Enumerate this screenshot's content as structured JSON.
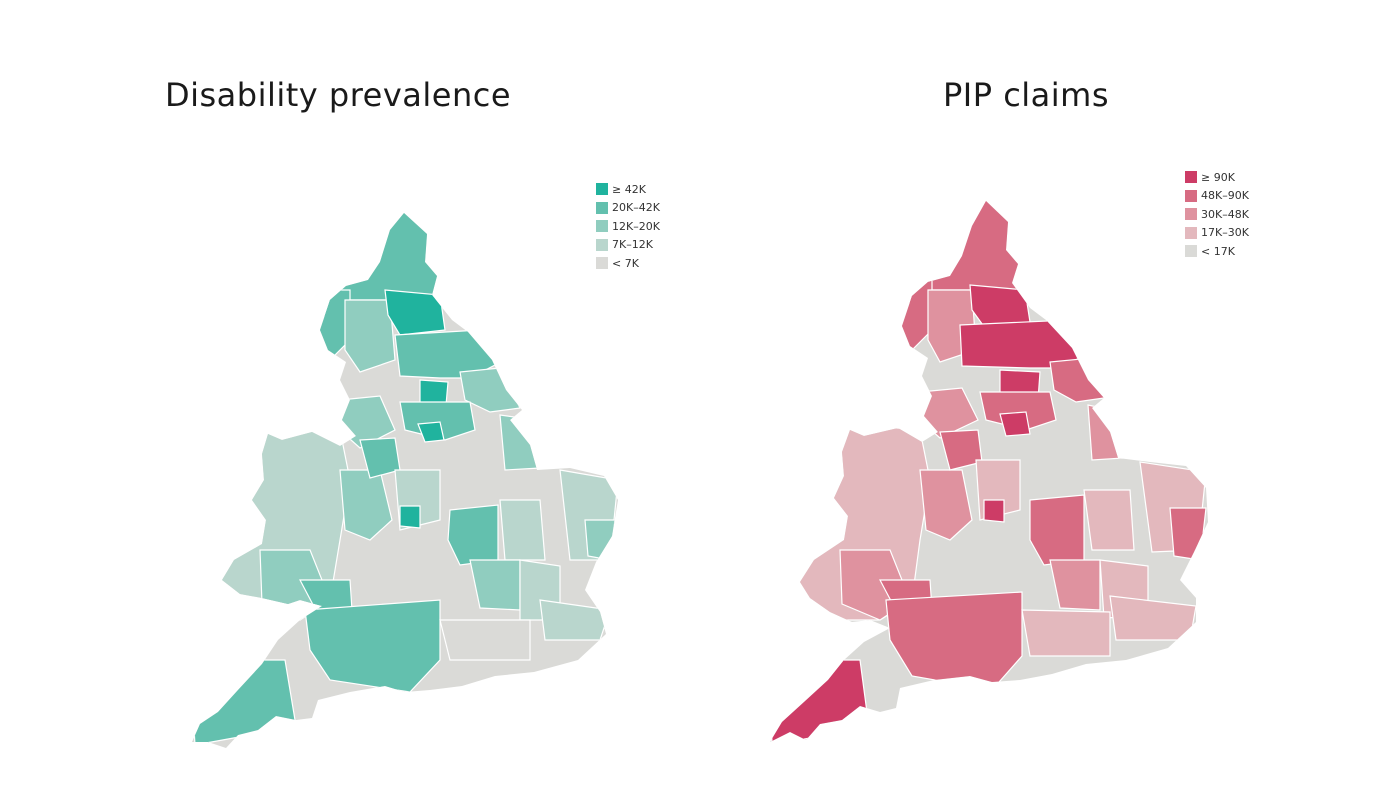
{
  "panels": [
    {
      "title": "Disability prevalence",
      "legend": [
        {
          "label": "≥ 42K",
          "color": "#20b39e"
        },
        {
          "label": "20K–42K",
          "color": "#63c0ae"
        },
        {
          "label": "12K–20K",
          "color": "#90cdbf"
        },
        {
          "label": "7K–12K",
          "color": "#b9d6cd"
        },
        {
          "label": "< 7K",
          "color": "#dadad7"
        }
      ]
    },
    {
      "title": "PIP claims",
      "legend": [
        {
          "label": "≥ 90K",
          "color": "#cd3c66"
        },
        {
          "label": "48K–90K",
          "color": "#d76b82"
        },
        {
          "label": "30K–48K",
          "color": "#df929f"
        },
        {
          "label": "17K–30K",
          "color": "#e3b8bd"
        },
        {
          "label": "< 17K",
          "color": "#dadad7"
        }
      ]
    }
  ]
}
